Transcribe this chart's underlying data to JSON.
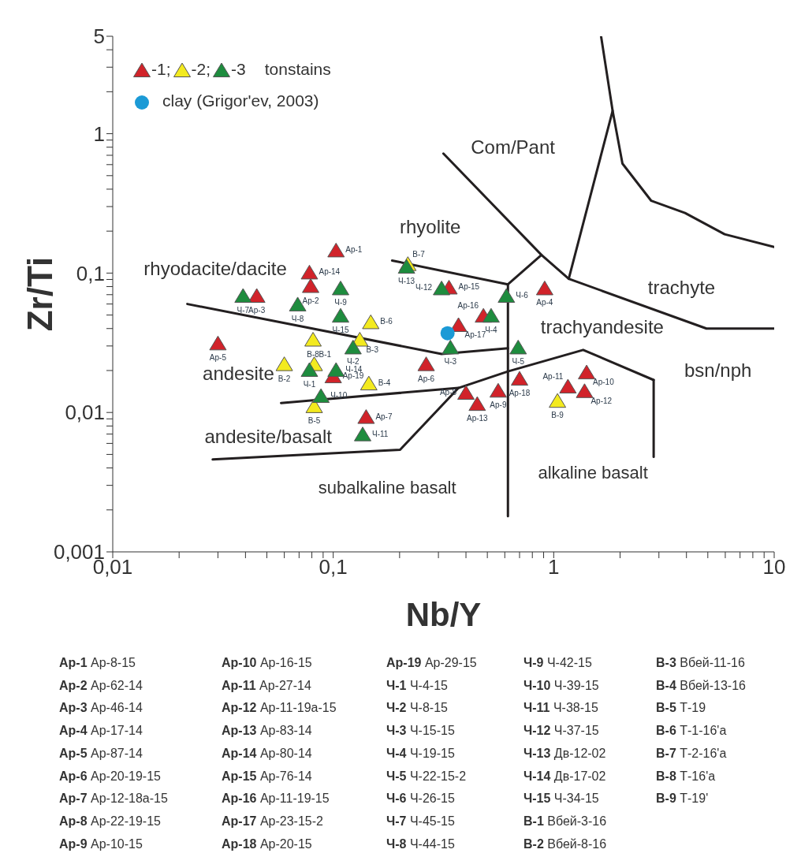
{
  "chart_data": {
    "type": "scatter",
    "xlabel": "Nb/Y",
    "ylabel": "Zr/Ti",
    "log": "xy",
    "legend": "top left",
    "legend_title": "tonstains",
    "line_style": "solid",
    "xlim": [
      0.01,
      10
    ],
    "ylim": [
      0.001,
      5
    ],
    "xticks": [
      {
        "value": 0.01,
        "label": "0,01"
      },
      {
        "value": 0.02,
        "label": null
      },
      {
        "value": 0.03,
        "label": null
      },
      {
        "value": 0.04,
        "label": null
      },
      {
        "value": 0.05,
        "label": null
      },
      {
        "value": 0.06,
        "label": null
      },
      {
        "value": 0.07,
        "label": null
      },
      {
        "value": 0.08,
        "label": null
      },
      {
        "value": 0.09,
        "label": null
      },
      {
        "value": 0.1,
        "label": "0,1"
      },
      {
        "value": 0.2,
        "label": null
      },
      {
        "value": 0.3,
        "label": null
      },
      {
        "value": 0.4,
        "label": null
      },
      {
        "value": 0.5,
        "label": null
      },
      {
        "value": 0.6,
        "label": null
      },
      {
        "value": 0.7,
        "label": null
      },
      {
        "value": 0.8,
        "label": null
      },
      {
        "value": 0.9,
        "label": null
      },
      1,
      {
        "value": 2,
        "label": null
      },
      {
        "value": 3,
        "label": null
      },
      {
        "value": 4,
        "label": null
      },
      {
        "value": 5,
        "label": null
      },
      {
        "value": 6,
        "label": null
      },
      {
        "value": 7,
        "label": null
      },
      {
        "value": 8,
        "label": null
      },
      {
        "value": 9,
        "label": null
      },
      10
    ],
    "yticks": [
      {
        "value": 0.001,
        "label": "0,001"
      },
      {
        "value": 0.002,
        "label": null
      },
      {
        "value": 0.003,
        "label": null
      },
      {
        "value": 0.004,
        "label": null
      },
      {
        "value": 0.005,
        "label": null
      },
      {
        "value": 0.006,
        "label": null
      },
      {
        "value": 0.007,
        "label": null
      },
      {
        "value": 0.008,
        "label": null
      },
      {
        "value": 0.009,
        "label": null
      },
      {
        "value": 0.01,
        "label": "0,01"
      },
      {
        "value": 0.02,
        "label": null
      },
      {
        "value": 0.03,
        "label": null
      },
      {
        "value": 0.04,
        "label": null
      },
      {
        "value": 0.05,
        "label": null
      },
      {
        "value": 0.06,
        "label": null
      },
      {
        "value": 0.07,
        "label": null
      },
      {
        "value": 0.08,
        "label": null
      },
      {
        "value": 0.09,
        "label": null
      },
      {
        "value": 0.1,
        "label": "0,1"
      },
      {
        "value": 0.2,
        "label": null
      },
      {
        "value": 0.3,
        "label": null
      },
      {
        "value": 0.4,
        "label": null
      },
      {
        "value": 0.5,
        "label": null
      },
      {
        "value": 0.6,
        "label": null
      },
      {
        "value": 0.7,
        "label": null
      },
      {
        "value": 0.8,
        "label": null
      },
      {
        "value": 0.9,
        "label": null
      },
      1,
      {
        "value": 2,
        "label": null
      },
      {
        "value": 3,
        "label": null
      },
      {
        "value": 4,
        "label": null
      },
      5
    ],
    "series": [
      {
        "type": "line",
        "color": "#231f20",
        "marker": "none",
        "x": [
          0.316,
          0.88,
          1.17,
          4.93,
          10
        ],
        "values": [
          0.72,
          0.135,
          0.091,
          0.04,
          0.04
        ]
      },
      {
        "type": "line",
        "color": "#231f20",
        "marker": "none",
        "x": [
          1.17,
          1.85
        ],
        "values": [
          0.091,
          1.46
        ]
      },
      {
        "type": "line",
        "color": "#231f20",
        "marker": "none",
        "x": [
          1.64,
          1.85,
          2.05,
          2.77,
          3.94,
          5.96,
          10
        ],
        "values": [
          5,
          1.46,
          0.61,
          0.33,
          0.27,
          0.19,
          0.154
        ]
      },
      {
        "type": "line",
        "color": "#231f20",
        "marker": "none",
        "x": [
          0.185,
          0.62,
          0.88
        ],
        "values": [
          0.123,
          0.083,
          0.135
        ]
      },
      {
        "type": "line",
        "color": "#231f20",
        "marker": "none",
        "x": [
          0.62,
          0.62
        ],
        "values": [
          0.083,
          0.0018
        ]
      },
      {
        "type": "line",
        "color": "#231f20",
        "marker": "none",
        "x": [
          0.0218,
          0.31,
          0.62
        ],
        "values": [
          0.06,
          0.0263,
          0.0289
        ]
      },
      {
        "type": "line",
        "color": "#231f20",
        "marker": "none",
        "x": [
          0.058,
          0.37,
          0.62,
          1.36,
          2.84
        ],
        "values": [
          0.0117,
          0.015,
          0.0197,
          0.0281,
          0.0171
        ]
      },
      {
        "type": "line",
        "color": "#231f20",
        "marker": "none",
        "x": [
          2.84,
          2.84
        ],
        "values": [
          0.0171,
          0.0048
        ]
      },
      {
        "type": "line",
        "color": "#231f20",
        "marker": "none",
        "x": [
          0.0284,
          0.201,
          0.37
        ],
        "values": [
          0.0046,
          0.0054,
          0.015
        ]
      },
      {
        "type": "scatter",
        "name": "-1;",
        "color": "#d1232a",
        "marker": "triangle",
        "x": [
          0.103,
          0.079,
          0.045,
          0.91,
          0.03,
          0.264,
          0.141,
          0.4,
          0.56,
          1.41,
          1.16,
          1.38,
          0.45,
          0.078,
          0.335,
          0.48,
          0.37,
          0.7,
          0.1
        ],
        "values": [
          0.144,
          0.08,
          0.068,
          0.077,
          0.031,
          0.022,
          0.0092,
          0.0137,
          0.0142,
          0.0192,
          0.0152,
          0.0141,
          0.0114,
          0.1,
          0.078,
          0.049,
          0.042,
          0.0173,
          0.018
        ],
        "value_labels": [
          "Ар-1",
          "Ар-2",
          "Ар-3",
          "Ар-4",
          "Ар-5",
          "Ар-6",
          "Ар-7",
          "Ар-8",
          "Ар-9",
          "Ар-10",
          "Ар-11",
          "Ар-12",
          "Ар-13",
          "Ар-14",
          "Ар-15",
          "Ар-16",
          "Ар-17",
          "Ар-18",
          "Ар-19"
        ]
      },
      {
        "type": "scatter",
        "name": "-2;",
        "color": "#f3ea1f",
        "marker": "triangle",
        "x": [
          0.082,
          0.06,
          0.132,
          0.145,
          0.082,
          0.148,
          0.218,
          0.081,
          1.04
        ],
        "values": [
          0.022,
          0.022,
          0.033,
          0.016,
          0.011,
          0.044,
          0.115,
          0.033,
          0.012
        ],
        "value_labels": [
          "В-1",
          "В-2",
          "В-3",
          "В-4",
          "В-5",
          "В-6",
          "В-7",
          "В-8",
          "В-9"
        ]
      },
      {
        "type": "scatter",
        "name": "-3",
        "color": "#1e8c3e",
        "marker": "triangle",
        "x": [
          0.078,
          0.123,
          0.34,
          0.52,
          0.69,
          0.61,
          0.039,
          0.069,
          0.108,
          0.088,
          0.136,
          0.31,
          0.215,
          0.103,
          0.108
        ],
        "values": [
          0.02,
          0.029,
          0.029,
          0.049,
          0.029,
          0.068,
          0.068,
          0.059,
          0.077,
          0.013,
          0.0069,
          0.077,
          0.11,
          0.02,
          0.049
        ],
        "value_labels": [
          "Ч-1",
          "Ч-2",
          "Ч-3",
          "Ч-4",
          "Ч-5",
          "Ч-6",
          "Ч-7",
          "Ч-8",
          "Ч-9",
          "Ч-10",
          "Ч-11",
          "Ч-12",
          "Ч-13",
          "Ч-14",
          "Ч-15"
        ]
      },
      {
        "type": "scatter",
        "name": "clay (Grigor'ev, 2003)",
        "color": "#1b9ad6",
        "marker": "circle",
        "x": [
          0.33
        ],
        "values": [
          0.037
        ]
      }
    ],
    "annotations": [
      "Com/Pant",
      "rhyolite",
      "rhyodacite/dacite",
      "trachyte",
      "trachyandesite",
      "andesite",
      "bsn/nph",
      "andesite/basalt",
      "alkaline basalt",
      "subalkaline basalt",
      "Ар-1 Ар-8-15",
      "Ар-2 Ар-62-14",
      "Ар-3 Ар-46-14",
      "Ар-4 Ар-17-14",
      "Ар-5 Ар-87-14",
      "Ар-6 Ар-20-19-15",
      "Ар-7 Ар-12-18а-15",
      "Ар-8 Ар-22-19-15",
      "Ар-9 Ар-10-15",
      "Ар-10 Ар-16-15",
      "Ар-11 Ар-27-14",
      "Ар-12 Ар-11-19а-15",
      "Ар-13 Ар-83-14",
      "Ар-14 Ар-80-14",
      "Ар-15 Ар-76-14",
      "Ар-16 Ар-11-19-15",
      "Ар-17 Ар-23-15-2",
      "Ар-18 Ар-20-15",
      "Ар-19 Ар-29-15",
      "Ч-1 Ч-4-15",
      "Ч-2 Ч-8-15",
      "Ч-3 Ч-15-15",
      "Ч-4 Ч-19-15",
      "Ч-5 Ч-22-15-2",
      "Ч-6 Ч-26-15",
      "Ч-7 Ч-45-15",
      "Ч-8 Ч-44-15",
      "Ч-9 Ч-42-15",
      "Ч-10 Ч-39-15",
      "Ч-11 Ч-38-15",
      "Ч-12 Ч-37-15",
      "Ч-13 Дв-12-02",
      "Ч-14 Дв-17-02",
      "Ч-15 Ч-34-15",
      "В-1 Вбей-3-16",
      "В-2 Вбей-8-16",
      "В-3 Вбей-11-16",
      "В-4 Вбей-13-16",
      "В-5 Т-19",
      "В-6 Т-1-16'а",
      "В-7 Т-2-16'а",
      "В-8 Т-16'а",
      "В-9 Т-19'"
    ]
  }
}
